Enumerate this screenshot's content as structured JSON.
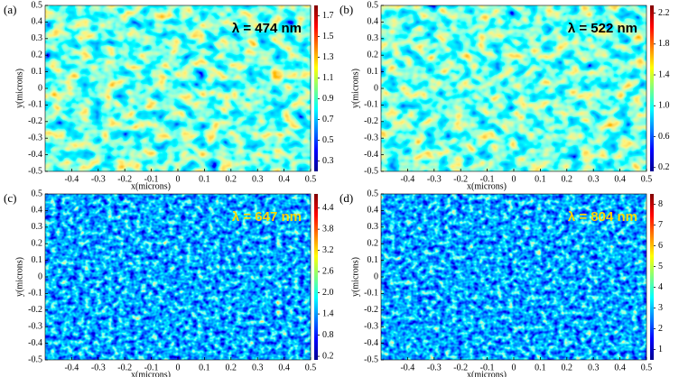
{
  "chart_data": [
    {
      "type": "heatmap",
      "panel_label": "(a)",
      "title": "λ  = 474 nm",
      "title_color": "#000000",
      "xlabel": "x(microns)",
      "ylabel": "y(microns)",
      "xlim": [
        -0.5,
        0.5
      ],
      "ylim": [
        -0.5,
        0.5
      ],
      "xticks": [
        -0.4,
        -0.3,
        -0.2,
        -0.1,
        0,
        0.1,
        0.2,
        0.3,
        0.4,
        0.5
      ],
      "yticks": [
        -0.5,
        -0.4,
        -0.3,
        -0.2,
        -0.1,
        0,
        0.1,
        0.2,
        0.3,
        0.4,
        0.5
      ],
      "clim": [
        0.2,
        1.8
      ],
      "cticks": [
        0.3,
        0.5,
        0.7,
        0.9,
        1.1,
        1.3,
        1.5,
        1.7
      ]
    },
    {
      "type": "heatmap",
      "panel_label": "(b)",
      "title": "λ  = 522 nm",
      "title_color": "#000000",
      "xlabel": "x(microns)",
      "ylabel": "y(microns)",
      "xlim": [
        -0.5,
        0.5
      ],
      "ylim": [
        -0.5,
        0.5
      ],
      "xticks": [
        -0.4,
        -0.3,
        -0.2,
        -0.1,
        0,
        0.1,
        0.2,
        0.3,
        0.4,
        0.5
      ],
      "yticks": [
        -0.5,
        -0.4,
        -0.3,
        -0.2,
        -0.1,
        0,
        0.1,
        0.2,
        0.3,
        0.4,
        0.5
      ],
      "clim": [
        0.15,
        2.3
      ],
      "cticks": [
        0.2,
        0.6,
        {
          "value": 1,
          "label": "1.0"
        },
        1.4,
        1.8,
        2.2
      ]
    },
    {
      "type": "heatmap",
      "panel_label": "(c)",
      "title": "λ  = 647 nm",
      "title_color": "#ffd700",
      "xlabel": "x(microns)",
      "ylabel": "y(microns)",
      "xlim": [
        -0.5,
        0.5
      ],
      "ylim": [
        -0.5,
        0.5
      ],
      "xticks": [
        -0.4,
        -0.3,
        -0.2,
        -0.1,
        0,
        0.1,
        0.2,
        0.3,
        0.4,
        0.5
      ],
      "yticks": [
        -0.5,
        -0.4,
        -0.3,
        -0.2,
        -0.1,
        0,
        0.1,
        0.2,
        0.3,
        0.4,
        0.5
      ],
      "clim": [
        0.1,
        4.8
      ],
      "cticks": [
        0.2,
        0.8,
        1.4,
        {
          "value": 2,
          "label": "2.0"
        },
        2.6,
        3.2,
        3.8,
        4.4
      ]
    },
    {
      "type": "heatmap",
      "panel_label": "(d)",
      "title": "λ  = 804 nm",
      "title_color": "#ffd700",
      "xlabel": "x(microns)",
      "ylabel": "y(microns)",
      "xlim": [
        -0.5,
        0.5
      ],
      "ylim": [
        -0.5,
        0.5
      ],
      "xticks": [
        -0.4,
        -0.3,
        -0.2,
        -0.1,
        0,
        0.1,
        0.2,
        0.3,
        0.4,
        0.5
      ],
      "yticks": [
        -0.5,
        -0.4,
        -0.3,
        -0.2,
        -0.1,
        0,
        0.1,
        0.2,
        0.3,
        0.4,
        0.5
      ],
      "clim": [
        0.5,
        8.5
      ],
      "cticks": [
        1,
        2,
        3,
        4,
        5,
        6,
        7,
        8
      ]
    }
  ]
}
